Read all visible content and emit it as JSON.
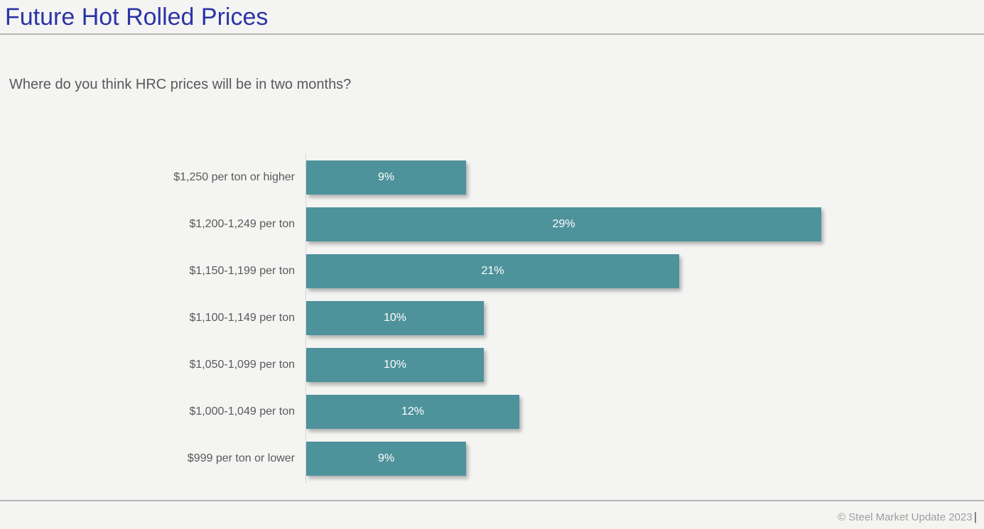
{
  "page": {
    "title": "Future Hot Rolled Prices",
    "question": "Where do you think HRC prices will be in two months?",
    "footer": {
      "copyright": "© Steel Market Update 2023",
      "cursor": "|"
    }
  },
  "colors": {
    "background": "#f4f4f3",
    "bar": "#4e929b",
    "title": "#2b34a6",
    "text_gray": "#595959",
    "divider": "#b5b5b5",
    "axis_line": "#d8d8d8",
    "footer_text": "#9e9e9e",
    "value_label": "#ffffff"
  },
  "chart_data": {
    "type": "bar",
    "orientation": "horizontal",
    "title": "Future Hot Rolled Prices",
    "subtitle": "Where do you think HRC prices will be in two months?",
    "xlabel": "",
    "ylabel": "",
    "xlim": [
      0,
      30
    ],
    "grid": false,
    "legend": null,
    "bar_color": "#4e929b",
    "categories": [
      "$1,250 per ton or higher",
      "$1,200-1,249 per ton",
      "$1,150-1,199 per ton",
      "$1,100-1,149 per ton",
      "$1,050-1,099 per ton",
      "$1,000-1,049 per ton",
      "$999 per ton or lower"
    ],
    "values": [
      9,
      29,
      21,
      10,
      10,
      12,
      9
    ],
    "value_labels": [
      "9%",
      "29%",
      "21%",
      "10%",
      "10%",
      "12%",
      "9%"
    ]
  }
}
